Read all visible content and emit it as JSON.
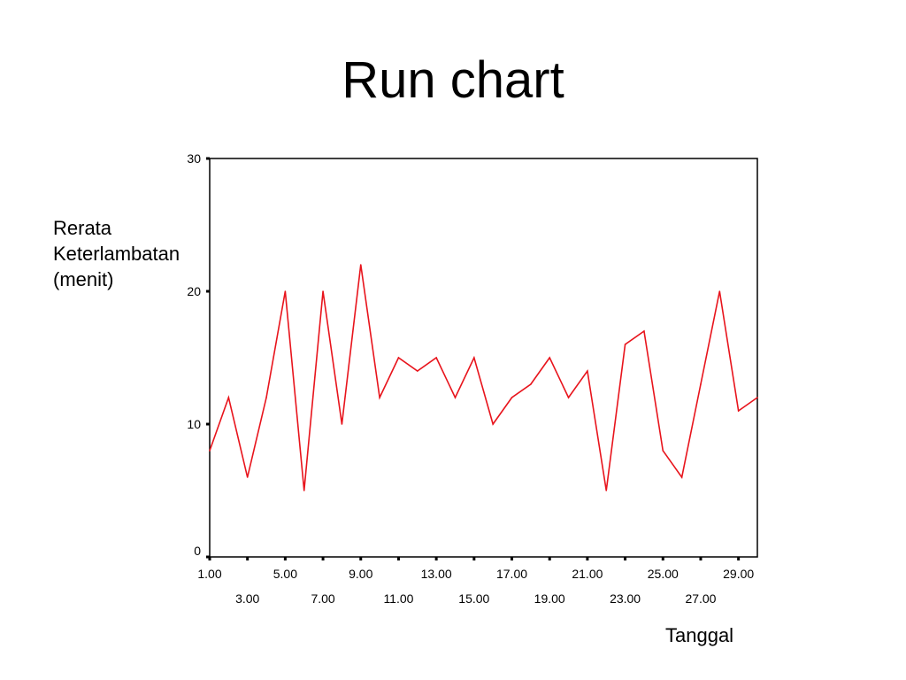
{
  "slide": {
    "title": "Run chart"
  },
  "chart_data": {
    "type": "line",
    "title": "Run chart",
    "xlabel": "Tanggal",
    "ylabel_lines": [
      "Rerata",
      "Keterlambatan",
      "(menit)"
    ],
    "x": [
      1,
      2,
      3,
      4,
      5,
      6,
      7,
      8,
      9,
      10,
      11,
      12,
      13,
      14,
      15,
      16,
      17,
      18,
      19,
      20,
      21,
      22,
      23,
      24,
      25,
      26,
      27,
      28,
      29,
      30
    ],
    "series": [
      {
        "values": [
          8,
          12,
          6,
          12,
          20,
          5,
          20,
          10,
          22,
          12,
          15,
          14,
          15,
          12,
          15,
          10,
          12,
          13,
          15,
          12,
          14,
          5,
          16,
          17,
          8,
          6,
          13,
          20,
          11,
          12
        ]
      }
    ],
    "xlim": [
      1,
      30
    ],
    "ylim": [
      0,
      30
    ],
    "y_ticks": [
      "0",
      "10",
      "20",
      "30"
    ],
    "y_tick_values": [
      0,
      10,
      20,
      30
    ],
    "x_tick_labels_row1": [
      "1.00",
      "5.00",
      "9.00",
      "13.00",
      "17.00",
      "21.00",
      "25.00",
      "29.00"
    ],
    "x_tick_values_row1": [
      1,
      5,
      9,
      13,
      17,
      21,
      25,
      29
    ],
    "x_tick_labels_row2": [
      "3.00",
      "7.00",
      "11.00",
      "15.00",
      "19.00",
      "23.00",
      "27.00"
    ],
    "x_tick_values_row2": [
      3,
      7,
      11,
      15,
      19,
      23,
      27
    ],
    "line_color": "#e8141c",
    "grid": false
  }
}
